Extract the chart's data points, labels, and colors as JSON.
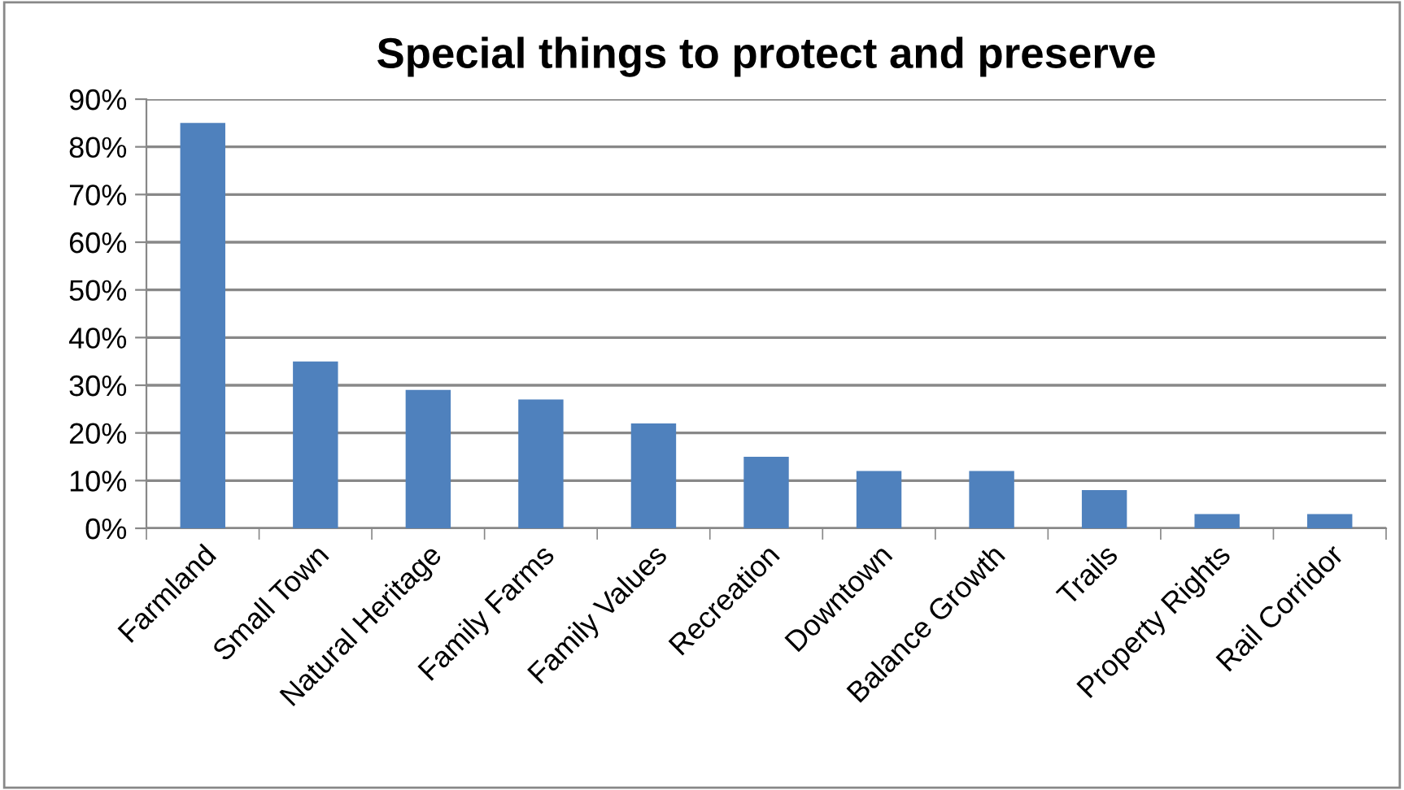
{
  "chart_data": {
    "type": "bar",
    "title": "Special things to protect and preserve",
    "categories": [
      "Farmland",
      "Small Town",
      "Natural Heritage",
      "Family Farms",
      "Family Values",
      "Recreation",
      "Downtown",
      "Balance Growth",
      "Trails",
      "Property Rights",
      "Rail Corridor"
    ],
    "values": [
      85,
      35,
      29,
      27,
      22,
      15,
      12,
      12,
      8,
      3,
      3
    ],
    "color": "#4f81bd",
    "ylim": [
      0,
      90
    ],
    "yticks": [
      {
        "value": 0,
        "label": "0%"
      },
      {
        "value": 10,
        "label": "10%"
      },
      {
        "value": 20,
        "label": "20%"
      },
      {
        "value": 30,
        "label": "30%"
      },
      {
        "value": 40,
        "label": "40%"
      },
      {
        "value": 50,
        "label": "50%"
      },
      {
        "value": 60,
        "label": "60%"
      },
      {
        "value": 70,
        "label": "70%"
      },
      {
        "value": 80,
        "label": "80%"
      },
      {
        "value": 90,
        "label": "90%"
      }
    ],
    "grid": "y",
    "legend": false
  }
}
